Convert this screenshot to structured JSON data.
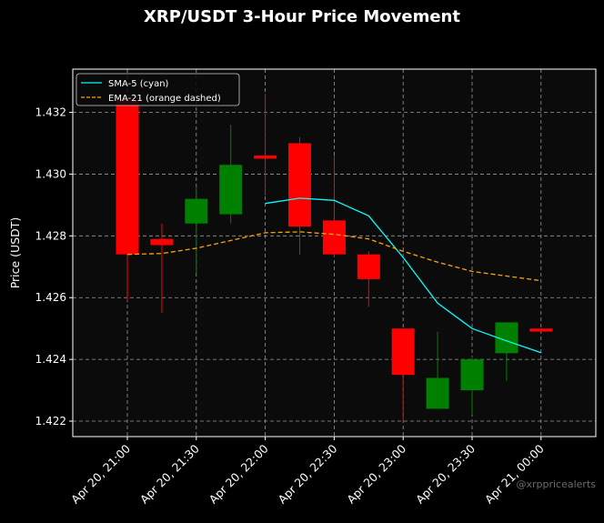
{
  "chart_data": {
    "type": "candlestick",
    "title": "XRP/USDT 3-Hour Price Movement",
    "xlabel": "",
    "ylabel": "Price (USDT)",
    "ylim": [
      1.4215,
      1.4334
    ],
    "x_tick_labels": [
      "Apr 20, 21:00",
      "Apr 20, 21:30",
      "Apr 20, 22:00",
      "Apr 20, 22:30",
      "Apr 20, 23:00",
      "Apr 20, 23:30",
      "Apr 21, 00:00"
    ],
    "y_ticks": [
      1.422,
      1.424,
      1.426,
      1.428,
      1.43,
      1.432
    ],
    "grid": true,
    "legend_position": "top-left",
    "background_color": "#0b0b0b",
    "up_color": "#008000",
    "down_color": "#ff0000",
    "candles": [
      {
        "time": "Apr 20, 21:00",
        "open": 1.4324,
        "high": 1.4325,
        "low": 1.4259,
        "close": 1.4274
      },
      {
        "time": "Apr 20, 21:15",
        "open": 1.4279,
        "high": 1.4284,
        "low": 1.4255,
        "close": 1.4277
      },
      {
        "time": "Apr 20, 21:30",
        "open": 1.4284,
        "high": 1.4296,
        "low": 1.4268,
        "close": 1.4292
      },
      {
        "time": "Apr 20, 21:45",
        "open": 1.4287,
        "high": 1.4316,
        "low": 1.4284,
        "close": 1.4303
      },
      {
        "time": "Apr 20, 22:00",
        "open": 1.4306,
        "high": 1.4326,
        "low": 1.4293,
        "close": 1.4305
      },
      {
        "time": "Apr 20, 22:15",
        "open": 1.431,
        "high": 1.4312,
        "low": 1.4274,
        "close": 1.4283
      },
      {
        "time": "Apr 20, 22:30",
        "open": 1.4285,
        "high": 1.4306,
        "low": 1.4273,
        "close": 1.4274
      },
      {
        "time": "Apr 20, 22:45",
        "open": 1.4274,
        "high": 1.4275,
        "low": 1.4257,
        "close": 1.4266
      },
      {
        "time": "Apr 20, 23:00",
        "open": 1.425,
        "high": 1.425,
        "low": 1.422,
        "close": 1.4235
      },
      {
        "time": "Apr 20, 23:15",
        "open": 1.4224,
        "high": 1.4249,
        "low": 1.4224,
        "close": 1.4234
      },
      {
        "time": "Apr 20, 23:30",
        "open": 1.423,
        "high": 1.4241,
        "low": 1.4222,
        "close": 1.424
      },
      {
        "time": "Apr 20, 23:45",
        "open": 1.4242,
        "high": 1.4252,
        "low": 1.4233,
        "close": 1.4252
      },
      {
        "time": "Apr 21, 00:00",
        "open": 1.425,
        "high": 1.425,
        "low": 1.4249,
        "close": 1.4249
      }
    ],
    "series": [
      {
        "name": "SMA-5 (cyan)",
        "color": "#00ffff",
        "style": "solid",
        "start_index": 4,
        "values": [
          1.42905,
          1.42922,
          1.42915,
          1.42865,
          1.4273,
          1.42582,
          1.425,
          1.4246,
          1.42422
        ]
      },
      {
        "name": "EMA-21 (orange dashed)",
        "color": "#ffa500",
        "style": "dashed",
        "start_index": 0,
        "values": [
          1.4274,
          1.42743,
          1.4276,
          1.42785,
          1.4281,
          1.42813,
          1.42805,
          1.4279,
          1.4275,
          1.42715,
          1.42685,
          1.4267,
          1.42655
        ]
      }
    ]
  },
  "watermark": "@xrppricealerts"
}
